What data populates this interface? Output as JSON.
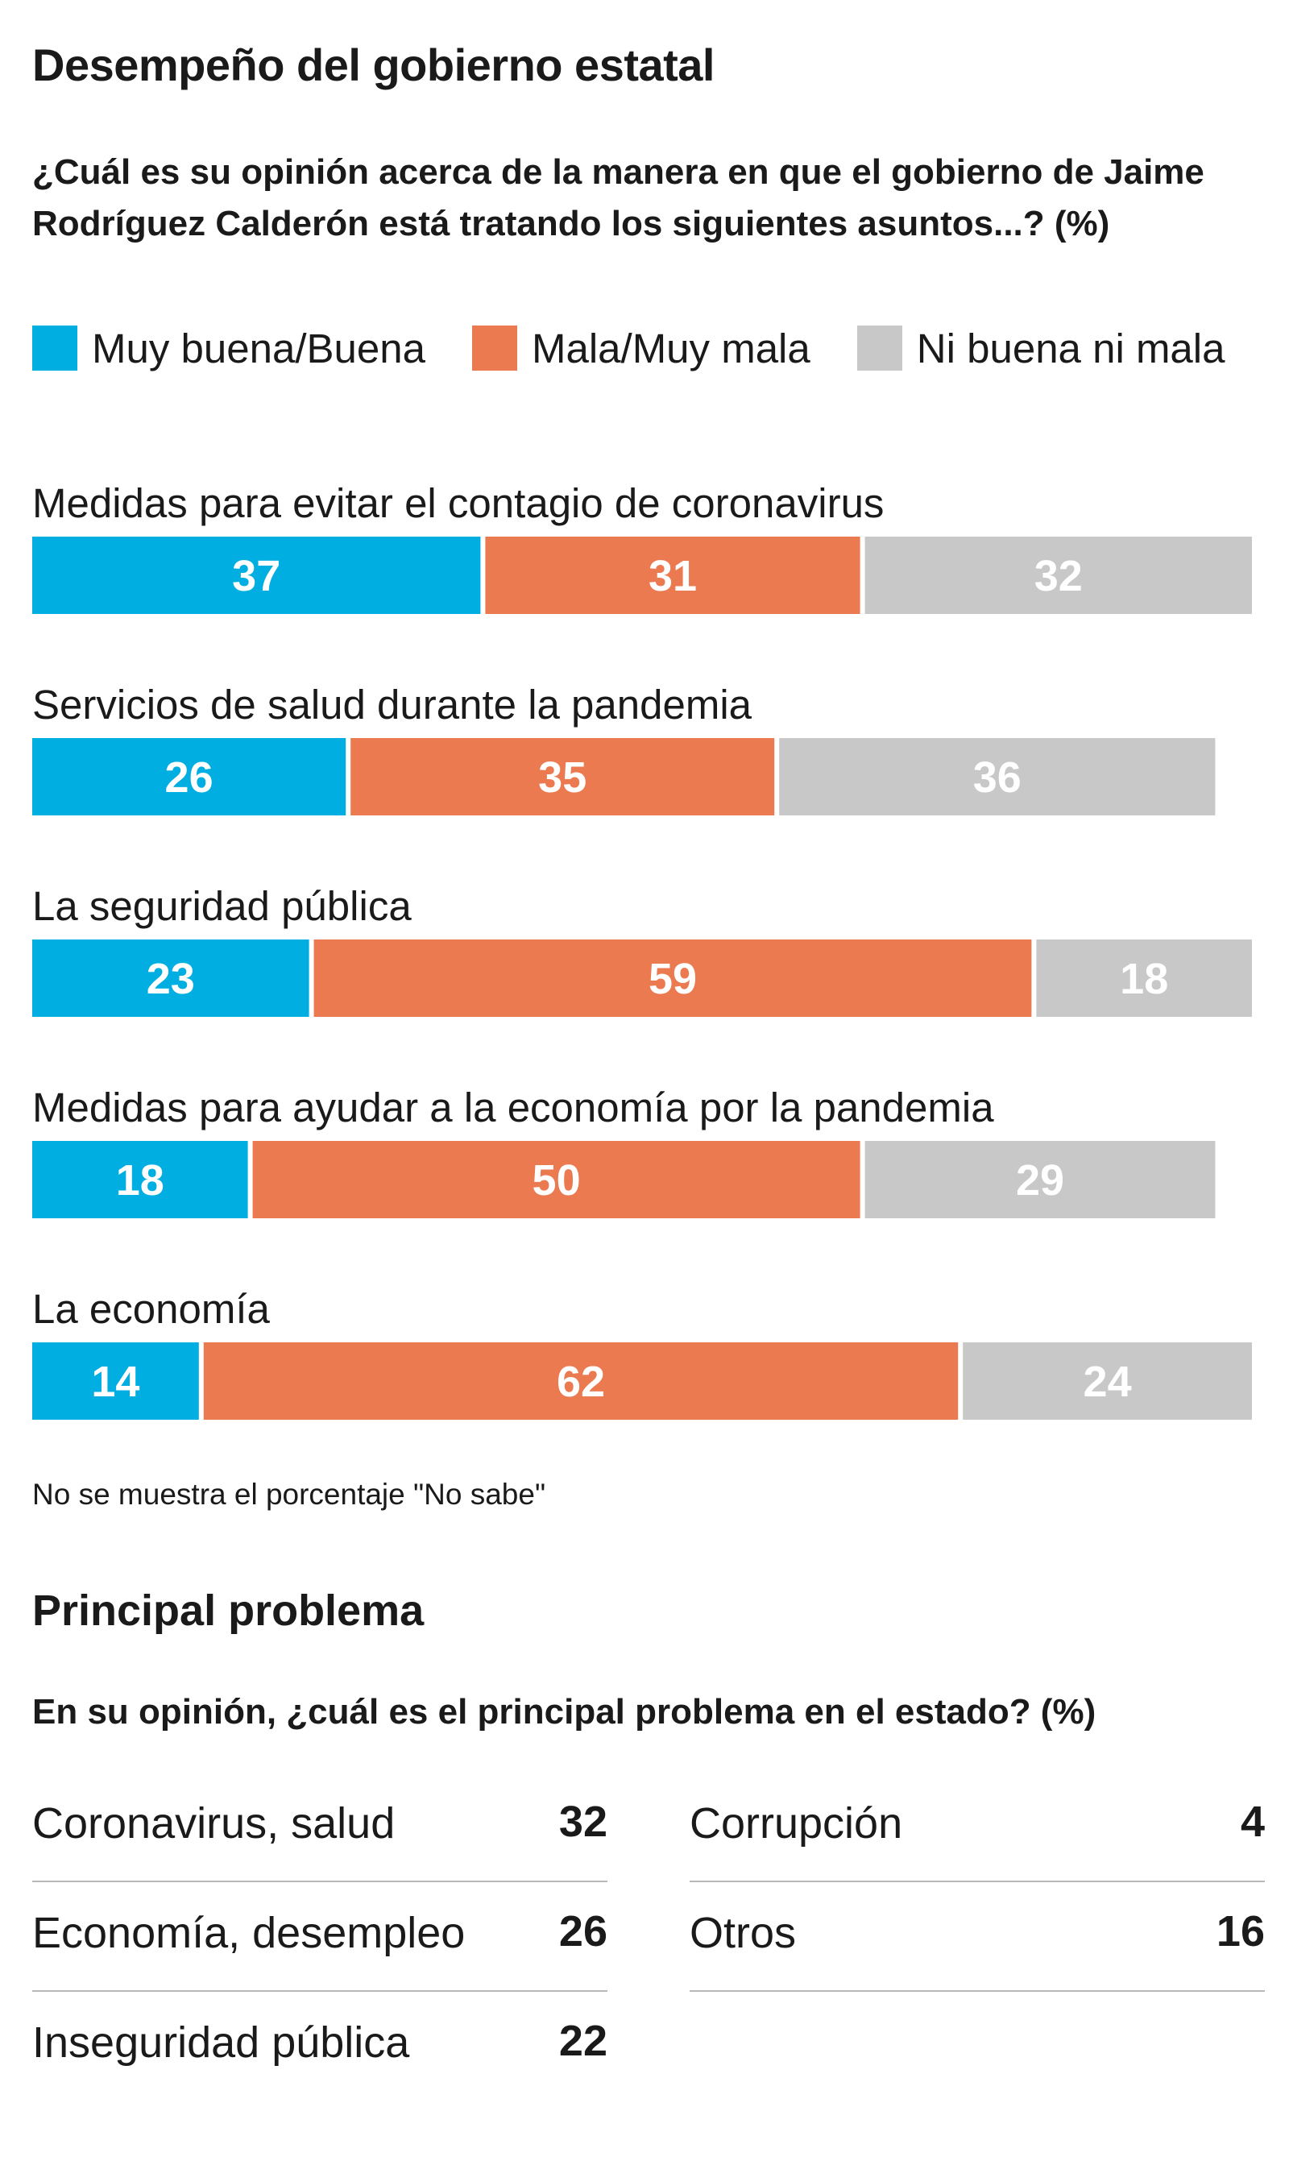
{
  "title": "Desempeño del gobierno estatal",
  "subtitle": "¿Cuál es su opinión acerca de la manera en que el gobierno de Jaime Rodríguez Calderón está tratando los siguientes asuntos...? (%)",
  "legend": [
    {
      "label": "Muy buena/Buena",
      "color": "#00aee2"
    },
    {
      "label": "Mala/Muy mala",
      "color": "#eb7a50"
    },
    {
      "label": "Ni buena ni mala",
      "color": "#c8c8c9"
    }
  ],
  "chart_data": {
    "type": "bar",
    "orientation": "horizontal",
    "stacked": true,
    "categories": [
      "Medidas para evitar el contagio de coronavirus",
      "Servicios de salud durante la pandemia",
      "La seguridad pública",
      "Medidas para ayudar a la economía por la pandemia",
      "La economía"
    ],
    "series": [
      {
        "name": "Muy buena/Buena",
        "color": "#00aee2",
        "values": [
          37,
          26,
          23,
          18,
          14
        ]
      },
      {
        "name": "Mala/Muy mala",
        "color": "#eb7a50",
        "values": [
          31,
          35,
          59,
          50,
          62
        ]
      },
      {
        "name": "Ni buena ni mala",
        "color": "#c8c8c9",
        "values": [
          32,
          36,
          18,
          29,
          24
        ]
      }
    ],
    "xlim": [
      0,
      100
    ],
    "axis_visible": false,
    "grid": false,
    "legend_position": "top",
    "data_labels": true
  },
  "note": "No se muestra el porcentaje \"No sabe\"",
  "problems": {
    "title": "Principal problema",
    "subtitle": "En su opinión, ¿cuál es el principal problema en el estado? (%)",
    "left": [
      {
        "label": "Coronavirus, salud",
        "value": "32"
      },
      {
        "label": "Economía, desempleo",
        "value": "26"
      },
      {
        "label": "Inseguridad pública",
        "value": "22"
      }
    ],
    "right": [
      {
        "label": "Corrupción",
        "value": "4"
      },
      {
        "label": "Otros",
        "value": "16"
      }
    ]
  }
}
